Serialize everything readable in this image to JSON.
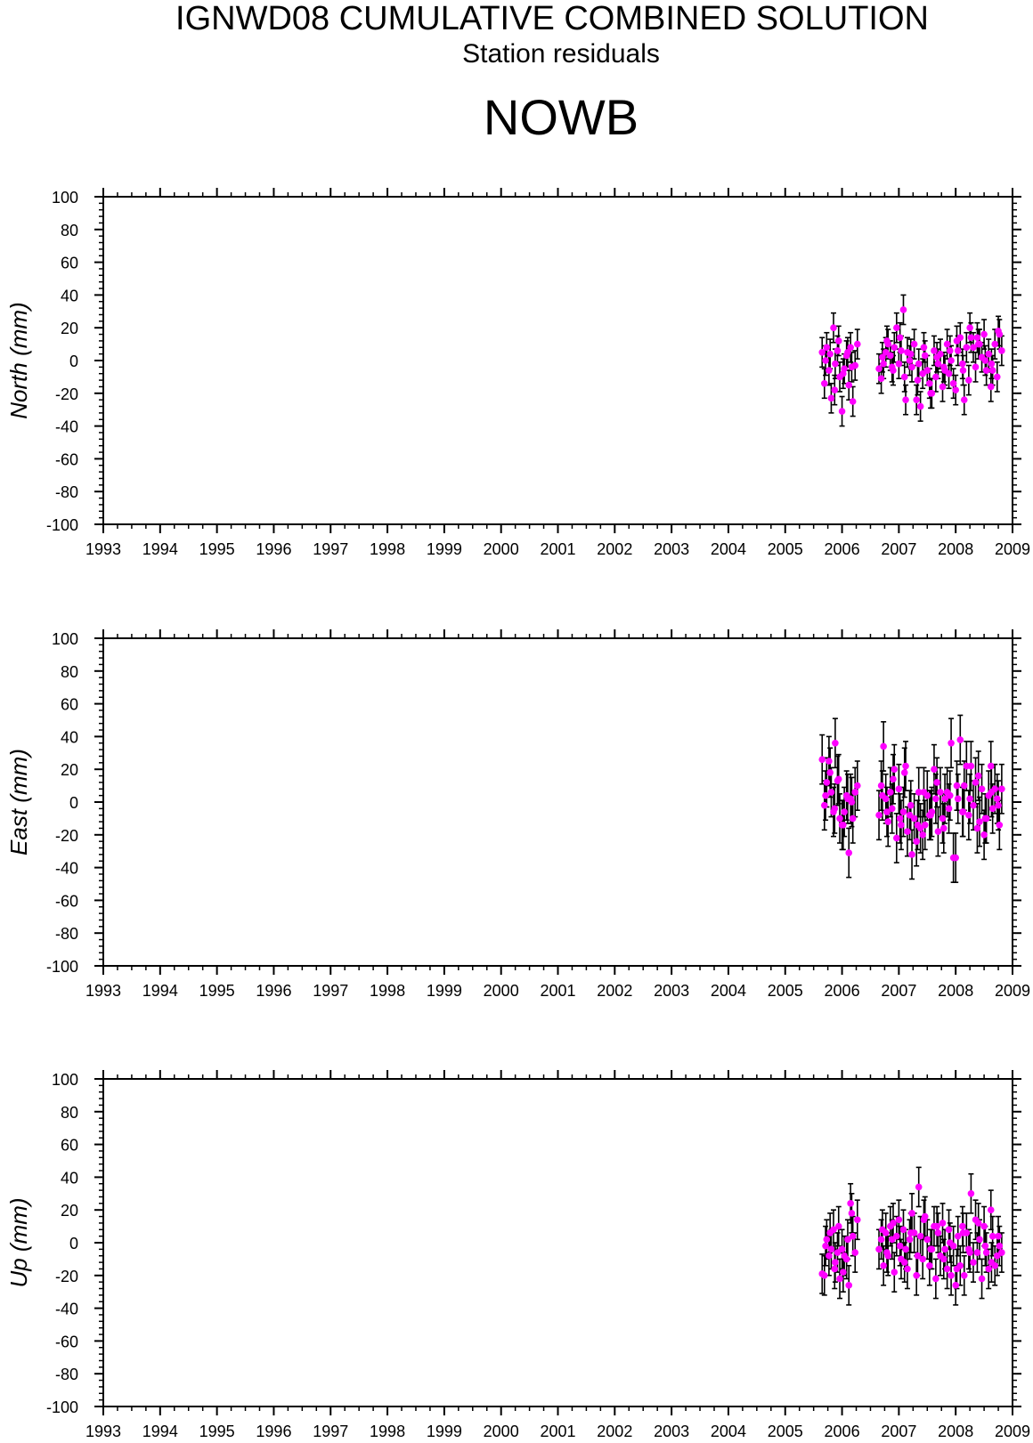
{
  "header": {
    "title": "IGNWD08 CUMULATIVE COMBINED SOLUTION",
    "subtitle": "Station residuals",
    "station": "NOWB"
  },
  "colors": {
    "marker": "#ff00ff",
    "errorbar": "#000000",
    "axis": "#000000"
  },
  "chart_data": [
    {
      "type": "scatter",
      "ylabel": "North (mm)",
      "xlim": [
        1993,
        2009
      ],
      "ylim": [
        -100,
        100
      ],
      "yticks": [
        -100,
        -80,
        -60,
        -40,
        -20,
        0,
        20,
        40,
        60,
        80,
        100
      ],
      "xticks": [
        1993,
        1994,
        1995,
        1996,
        1997,
        1998,
        1999,
        2000,
        2001,
        2002,
        2003,
        2004,
        2005,
        2006,
        2007,
        2008,
        2009
      ],
      "grid": false,
      "error_bar_halfwidth_mm": 9,
      "series": [
        {
          "x": [
            2005.65,
            2005.69,
            2005.73,
            2005.77,
            2005.81,
            2005.85,
            2005.88,
            2005.92,
            2005.96,
            2006.0,
            2006.04,
            2006.08,
            2006.12,
            2006.15,
            2006.19,
            2006.23,
            2006.27,
            2005.71,
            2005.79,
            2005.87,
            2005.94,
            2006.02,
            2006.1,
            2006.17,
            2006.65,
            2006.69,
            2006.73,
            2006.77,
            2006.81,
            2006.85,
            2006.88,
            2006.92,
            2006.96,
            2007.0,
            2007.04,
            2007.08,
            2007.12,
            2007.15,
            2007.19,
            2007.23,
            2007.27,
            2007.31,
            2007.35,
            2007.38,
            2007.42,
            2007.46,
            2007.5,
            2007.54,
            2007.58,
            2007.62,
            2007.65,
            2007.69,
            2007.73,
            2007.77,
            2007.81,
            2007.85,
            2007.88,
            2007.92,
            2007.96,
            2008.0,
            2008.04,
            2008.08,
            2008.12,
            2008.15,
            2008.19,
            2008.23,
            2008.27,
            2008.31,
            2008.35,
            2008.38,
            2008.42,
            2008.46,
            2008.5,
            2008.54,
            2008.58,
            2008.62,
            2008.65,
            2008.69,
            2008.73,
            2008.77,
            2008.81,
            2006.71,
            2006.79,
            2006.9,
            2007.02,
            2007.1,
            2007.21,
            2007.33,
            2007.44,
            2007.56,
            2007.67,
            2007.79,
            2007.9,
            2008.02,
            2008.13,
            2008.25,
            2008.4,
            2008.52,
            2008.63,
            2008.75
          ],
          "y": [
            5,
            -14,
            8,
            -6,
            -23,
            20,
            -2,
            6,
            -10,
            -31,
            -5,
            3,
            -15,
            8,
            -25,
            -3,
            10,
            0,
            4,
            -18,
            12,
            -8,
            5,
            -4,
            -5,
            -11,
            -2,
            5,
            10,
            3,
            -4,
            8,
            20,
            -2,
            6,
            31,
            -24,
            5,
            0,
            -4,
            10,
            -24,
            -2,
            -28,
            -8,
            3,
            -6,
            -14,
            -20,
            6,
            -10,
            -2,
            4,
            -16,
            -6,
            10,
            -8,
            0,
            -14,
            -18,
            6,
            14,
            -2,
            -24,
            8,
            -12,
            14,
            8,
            -4,
            14,
            10,
            2,
            16,
            -6,
            4,
            -16,
            -6,
            10,
            -10,
            16,
            6,
            2,
            12,
            -6,
            14,
            -10,
            4,
            -12,
            8,
            -20,
            2,
            -4,
            6,
            12,
            -6,
            20,
            10,
            0,
            -2,
            18
          ]
        }
      ]
    },
    {
      "type": "scatter",
      "ylabel": "East (mm)",
      "xlim": [
        1993,
        2009
      ],
      "ylim": [
        -100,
        100
      ],
      "yticks": [
        -100,
        -80,
        -60,
        -40,
        -20,
        0,
        20,
        40,
        60,
        80,
        100
      ],
      "xticks": [
        1993,
        1994,
        1995,
        1996,
        1997,
        1998,
        1999,
        2000,
        2001,
        2002,
        2003,
        2004,
        2005,
        2006,
        2007,
        2008,
        2009
      ],
      "grid": false,
      "error_bar_halfwidth_mm": 15,
      "series": [
        {
          "x": [
            2005.65,
            2005.69,
            2005.73,
            2005.77,
            2005.81,
            2005.85,
            2005.88,
            2005.92,
            2005.96,
            2006.0,
            2006.04,
            2006.08,
            2006.12,
            2006.15,
            2006.19,
            2006.23,
            2006.27,
            2005.71,
            2005.79,
            2005.87,
            2005.94,
            2006.02,
            2006.1,
            2006.17,
            2006.65,
            2006.69,
            2006.73,
            2006.77,
            2006.81,
            2006.85,
            2006.88,
            2006.92,
            2006.96,
            2007.0,
            2007.04,
            2007.08,
            2007.12,
            2007.15,
            2007.19,
            2007.23,
            2007.27,
            2007.31,
            2007.35,
            2007.38,
            2007.42,
            2007.46,
            2007.5,
            2007.54,
            2007.58,
            2007.62,
            2007.65,
            2007.69,
            2007.73,
            2007.77,
            2007.81,
            2007.85,
            2007.88,
            2007.92,
            2007.96,
            2008.0,
            2008.04,
            2008.08,
            2008.12,
            2008.15,
            2008.19,
            2008.23,
            2008.27,
            2008.31,
            2008.35,
            2008.38,
            2008.42,
            2008.46,
            2008.5,
            2008.54,
            2008.58,
            2008.62,
            2008.65,
            2008.69,
            2008.73,
            2008.77,
            2008.81,
            2006.71,
            2006.79,
            2006.9,
            2007.02,
            2007.1,
            2007.21,
            2007.33,
            2007.44,
            2007.56,
            2007.67,
            2007.79,
            2007.9,
            2008.02,
            2008.13,
            2008.25,
            2008.4,
            2008.52,
            2008.63,
            2008.75
          ],
          "y": [
            26,
            -2,
            12,
            25,
            6,
            -6,
            36,
            13,
            -10,
            -14,
            -6,
            4,
            -31,
            2,
            -10,
            6,
            10,
            4,
            18,
            -4,
            14,
            -14,
            2,
            0,
            -8,
            10,
            34,
            2,
            -12,
            6,
            -4,
            20,
            -22,
            8,
            -14,
            -6,
            22,
            -18,
            -8,
            -32,
            -10,
            -24,
            6,
            -16,
            -20,
            -14,
            4,
            -8,
            -6,
            20,
            2,
            -18,
            6,
            -10,
            2,
            6,
            -4,
            36,
            -34,
            -34,
            2,
            38,
            -6,
            10,
            22,
            -8,
            22,
            -2,
            12,
            -16,
            -12,
            8,
            -20,
            -10,
            4,
            22,
            -4,
            8,
            2,
            -14,
            8,
            4,
            -6,
            14,
            -10,
            18,
            -2,
            -14,
            6,
            -8,
            12,
            -16,
            4,
            10,
            -6,
            2,
            16,
            -10,
            6,
            -2
          ]
        }
      ]
    },
    {
      "type": "scatter",
      "ylabel": "Up (mm)",
      "xlim": [
        1993,
        2009
      ],
      "ylim": [
        -100,
        100
      ],
      "yticks": [
        -100,
        -80,
        -60,
        -40,
        -20,
        0,
        20,
        40,
        60,
        80,
        100
      ],
      "xticks": [
        1993,
        1994,
        1995,
        1996,
        1997,
        1998,
        1999,
        2000,
        2001,
        2002,
        2003,
        2004,
        2005,
        2006,
        2007,
        2008,
        2009
      ],
      "grid": false,
      "error_bar_halfwidth_mm": 12,
      "series": [
        {
          "x": [
            2005.65,
            2005.69,
            2005.73,
            2005.77,
            2005.81,
            2005.85,
            2005.88,
            2005.92,
            2005.96,
            2006.0,
            2006.04,
            2006.08,
            2006.12,
            2006.15,
            2006.19,
            2006.23,
            2006.27,
            2005.71,
            2005.79,
            2005.87,
            2005.94,
            2006.02,
            2006.1,
            2006.17,
            2006.65,
            2006.69,
            2006.73,
            2006.77,
            2006.81,
            2006.85,
            2006.88,
            2006.92,
            2006.96,
            2007.0,
            2007.04,
            2007.08,
            2007.12,
            2007.15,
            2007.19,
            2007.23,
            2007.27,
            2007.31,
            2007.35,
            2007.38,
            2007.42,
            2007.46,
            2007.5,
            2007.54,
            2007.58,
            2007.62,
            2007.65,
            2007.69,
            2007.73,
            2007.77,
            2007.81,
            2007.85,
            2007.88,
            2007.92,
            2007.96,
            2008.0,
            2008.04,
            2008.08,
            2008.12,
            2008.15,
            2008.19,
            2008.23,
            2008.27,
            2008.31,
            2008.35,
            2008.38,
            2008.42,
            2008.46,
            2008.5,
            2008.54,
            2008.58,
            2008.62,
            2008.65,
            2008.69,
            2008.73,
            2008.77,
            2008.81,
            2006.71,
            2006.79,
            2006.9,
            2007.02,
            2007.1,
            2007.21,
            2007.33,
            2007.44,
            2007.56,
            2007.67,
            2007.79,
            2007.9,
            2008.02,
            2008.13,
            2008.25,
            2008.4,
            2008.52,
            2008.63,
            2008.75
          ],
          "y": [
            -19,
            -20,
            2,
            -8,
            -4,
            8,
            -12,
            -6,
            -22,
            -4,
            -8,
            -10,
            -26,
            24,
            4,
            -6,
            14,
            -2,
            6,
            -16,
            10,
            -18,
            2,
            18,
            -4,
            2,
            -14,
            6,
            -8,
            10,
            2,
            -18,
            4,
            14,
            -10,
            8,
            -4,
            -16,
            2,
            18,
            6,
            -20,
            34,
            4,
            -10,
            16,
            2,
            -14,
            -4,
            10,
            -22,
            6,
            -8,
            12,
            -4,
            -16,
            8,
            -20,
            -2,
            -26,
            4,
            -14,
            10,
            -20,
            6,
            -4,
            30,
            -12,
            14,
            -6,
            2,
            -22,
            10,
            -6,
            -16,
            20,
            4,
            -14,
            -8,
            -2,
            -6,
            8,
            -6,
            12,
            -2,
            -12,
            6,
            -8,
            14,
            -4,
            10,
            -10,
            0,
            -16,
            6,
            -6,
            12,
            -2,
            -12,
            4
          ]
        }
      ]
    }
  ]
}
